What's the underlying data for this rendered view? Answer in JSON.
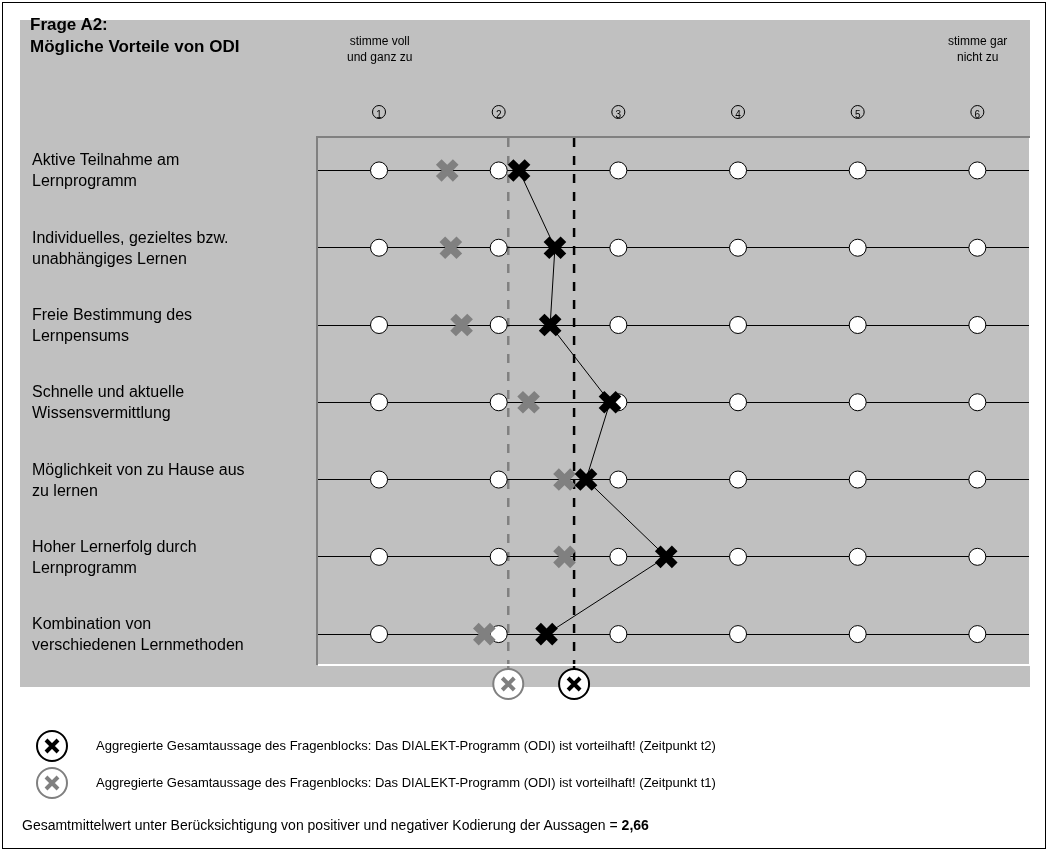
{
  "chart_data": {
    "type": "scatter",
    "orientation": "horizontal",
    "title": "Frage A2:\nMögliche Vorteile von ODI",
    "categories": [
      "Aktive Teilnahme am\nLernprogramm",
      "Individuelles, gezieltes bzw.\nunabhängiges Lernen",
      "Freie Bestimmung des\nLernpensums",
      "Schnelle und aktuelle\nWissensvermittlung",
      "Möglichkeit von zu Hause aus\nzu lernen",
      "Hoher Lernerfolg durch\nLernprogramm",
      "Kombination von\nverschiedenen Lernmethoden"
    ],
    "xlim": [
      0.49,
      6.44
    ],
    "xticks": [
      1,
      2,
      3,
      4,
      5,
      6
    ],
    "grid": "y",
    "legend": "bottom left",
    "series": [
      {
        "type": "scatter",
        "marker": "circle",
        "color": "#ffffff",
        "values": [
          1,
          1,
          1,
          1,
          1,
          1,
          1
        ]
      },
      {
        "type": "scatter",
        "marker": "circle",
        "color": "#ffffff",
        "values": [
          2,
          2,
          2,
          2,
          2,
          2,
          2
        ]
      },
      {
        "type": "scatter",
        "marker": "circle",
        "color": "#ffffff",
        "values": [
          3,
          3,
          3,
          3,
          3,
          3,
          3
        ]
      },
      {
        "type": "scatter",
        "marker": "circle",
        "color": "#ffffff",
        "values": [
          4,
          4,
          4,
          4,
          4,
          4,
          4
        ]
      },
      {
        "type": "scatter",
        "marker": "circle",
        "color": "#ffffff",
        "values": [
          5,
          5,
          5,
          5,
          5,
          5,
          5
        ]
      },
      {
        "type": "scatter",
        "marker": "circle",
        "color": "#ffffff",
        "values": [
          6,
          6,
          6,
          6,
          6,
          6,
          6
        ]
      },
      {
        "type": "scatter",
        "marker": "cross",
        "color": "#808080",
        "values": [
          1.57,
          1.6,
          1.69,
          2.25,
          2.55,
          2.55,
          1.88
        ]
      },
      {
        "type": "line",
        "marker": "cross",
        "line_style": "solid",
        "color": "#000000",
        "values": [
          2.17,
          2.47,
          2.43,
          2.93,
          2.73,
          3.4,
          2.4
        ]
      }
    ],
    "ref_lines": [
      {
        "axis": "x",
        "value": 2.63,
        "color": "#000000",
        "line_style": "dashed",
        "label": "Aggregierte Gesamtaussage des Fragenblocks: Das DIALEKT-Programm (ODI) ist vorteilhaft! (Zeitpunkt t2)"
      },
      {
        "axis": "x",
        "value": 2.08,
        "color": "#808080",
        "line_style": "dashed",
        "label": "Aggregierte Gesamtaussage des Fragenblocks: Das DIALEKT-Programm (ODI) ist vorteilhaft! (Zeitpunkt t1)"
      }
    ],
    "annotations": [
      "stimme voll\nund ganz zu",
      "stimme gar\nnicht zu",
      "Gesamtmittelwert unter Berücksichtigung von positiver und negativer Kodierung der Aussagen = 2,66"
    ]
  }
}
